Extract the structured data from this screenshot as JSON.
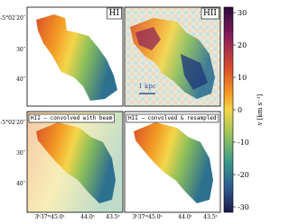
{
  "panels": [
    {
      "label": "HI"
    },
    {
      "label": "HII"
    },
    {
      "label": "HII – convolved with beam"
    },
    {
      "label": "HII – convolved & resampled"
    }
  ],
  "scale_bar": "1 kpc",
  "y_tick_labels": [
    "-5°02′20″",
    "30″",
    "40″"
  ],
  "x_tick_labels": [
    "3ʰ37ᵐ45.0ˢ",
    "44.0ˢ",
    "43.5ˢ"
  ],
  "colorbar": {
    "label": "v [km s⁻¹]",
    "lim": [
      -30,
      30
    ],
    "ticks": [
      -30,
      -20,
      -10,
      0,
      10,
      20,
      30
    ]
  }
}
